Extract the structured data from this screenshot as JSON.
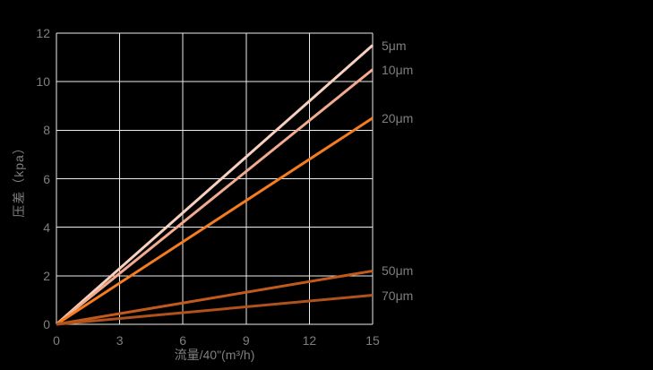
{
  "background_color": "#000000",
  "text_color": "#7f7f7f",
  "grid_color": "#edebeb",
  "chart_data": {
    "type": "line",
    "title": "",
    "xlabel": "流量/40\"(m³/h)",
    "ylabel": "压差（kpa）",
    "xlim": [
      0,
      15
    ],
    "ylim": [
      0,
      12
    ],
    "xticks": [
      0,
      3,
      6,
      9,
      12,
      15
    ],
    "yticks": [
      0,
      2,
      4,
      6,
      8,
      10,
      12
    ],
    "grid": true,
    "legend_position": "labels at right end of each line",
    "series": [
      {
        "name": "5μm",
        "color": "#f7d0c0",
        "x": [
          0,
          15
        ],
        "y": [
          0,
          11.5
        ]
      },
      {
        "name": "10μm",
        "color": "#f3ab90",
        "x": [
          0,
          15
        ],
        "y": [
          0,
          10.5
        ]
      },
      {
        "name": "20μm",
        "color": "#f47c21",
        "x": [
          0,
          15
        ],
        "y": [
          0,
          8.5
        ]
      },
      {
        "name": "50μm",
        "color": "#c25a1e",
        "x": [
          0,
          15
        ],
        "y": [
          0,
          2.2
        ]
      },
      {
        "name": "70μm",
        "color": "#b0521b",
        "x": [
          0,
          15
        ],
        "y": [
          0,
          1.2
        ]
      }
    ]
  }
}
